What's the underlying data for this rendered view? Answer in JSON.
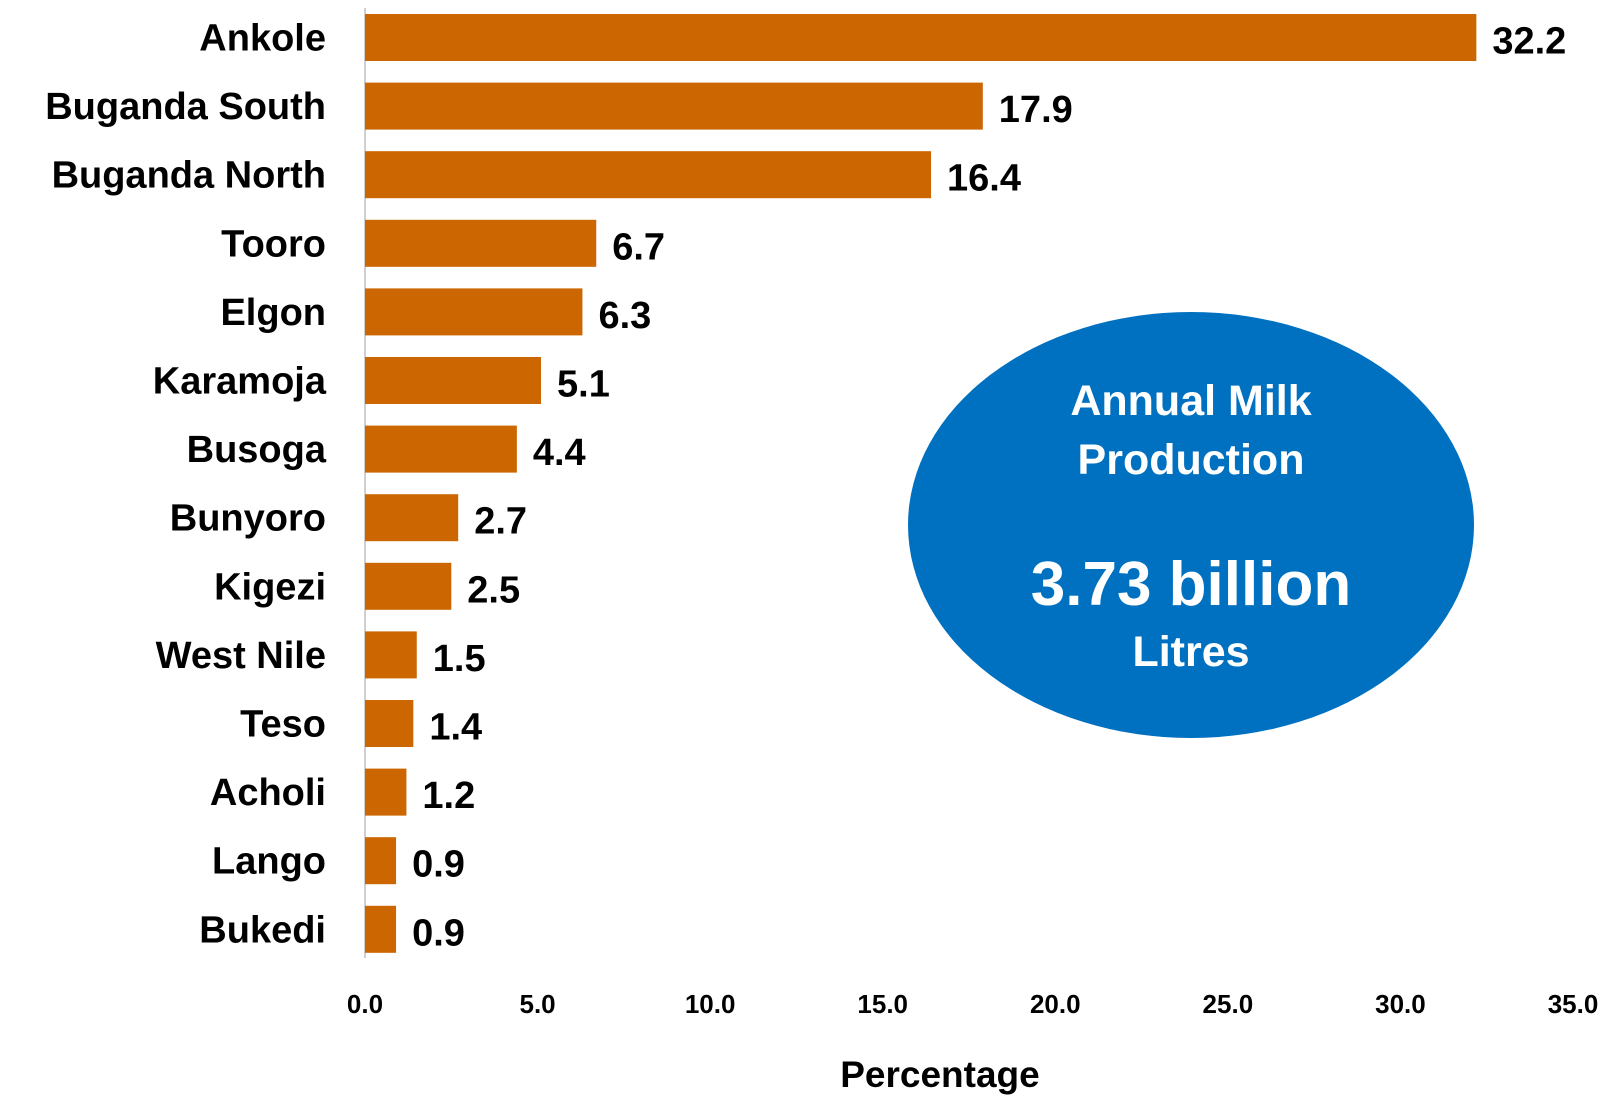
{
  "chart_data": {
    "type": "bar",
    "orientation": "horizontal",
    "categories": [
      "Ankole",
      "Buganda South",
      "Buganda North",
      "Tooro",
      "Elgon",
      "Karamoja",
      "Busoga",
      "Bunyoro",
      "Kigezi",
      "West Nile",
      "Teso",
      "Acholi",
      "Lango",
      "Bukedi"
    ],
    "values": [
      32.2,
      17.9,
      16.4,
      6.7,
      6.3,
      5.1,
      4.4,
      2.7,
      2.5,
      1.5,
      1.4,
      1.2,
      0.9,
      0.9
    ],
    "value_labels": [
      "32.2",
      "17.9",
      "16.4",
      "6.7",
      "6.3",
      "5.1",
      "4.4",
      "2.7",
      "2.5",
      "1.5",
      "1.4",
      "1.2",
      "0.9",
      "0.9"
    ],
    "xlabel": "Percentage",
    "ylabel": "",
    "xlim": [
      0,
      35
    ],
    "x_ticks": [
      "0.0",
      "5.0",
      "10.0",
      "15.0",
      "20.0",
      "25.0",
      "30.0",
      "35.0"
    ],
    "grid": false,
    "bar_color": "#CC6600"
  },
  "callout": {
    "line1": "Annual Milk",
    "line2": "Production",
    "value": "3.73 billion",
    "unit": "Litres",
    "color": "#0070C0"
  }
}
